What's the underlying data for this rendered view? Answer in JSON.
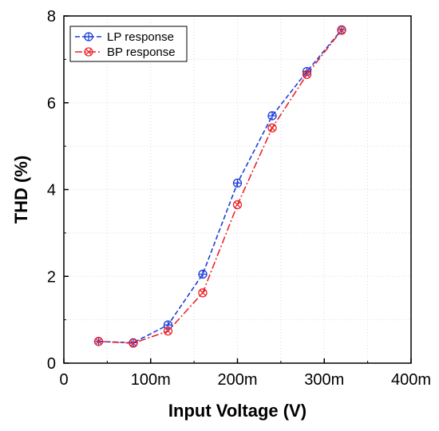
{
  "chart_data": {
    "type": "line",
    "xlabel": "Input Voltage (V)",
    "ylabel": "THD (%)",
    "xlim": [
      0,
      400
    ],
    "ylim": [
      0,
      8
    ],
    "x_ticks": [
      0,
      100,
      200,
      300,
      400
    ],
    "x_tick_labels": [
      "0",
      "100m",
      "200m",
      "300m",
      "400m"
    ],
    "y_ticks": [
      0,
      2,
      4,
      6,
      8
    ],
    "y_tick_labels": [
      "0",
      "2",
      "4",
      "6",
      "8"
    ],
    "grid": true,
    "legend_position": "top-left",
    "x": [
      40,
      80,
      120,
      160,
      200,
      240,
      280,
      320
    ],
    "series": [
      {
        "name": "LP response",
        "color": "#1f3fd8",
        "marker": "circle-plus",
        "line_style": "dashed",
        "values": [
          0.5,
          0.47,
          0.88,
          2.05,
          4.15,
          5.7,
          6.72,
          7.68
        ]
      },
      {
        "name": "BP response",
        "color": "#e8242b",
        "marker": "circle-x",
        "line_style": "dash-dot",
        "values": [
          0.5,
          0.46,
          0.74,
          1.62,
          3.65,
          5.42,
          6.65,
          7.67
        ]
      }
    ]
  }
}
